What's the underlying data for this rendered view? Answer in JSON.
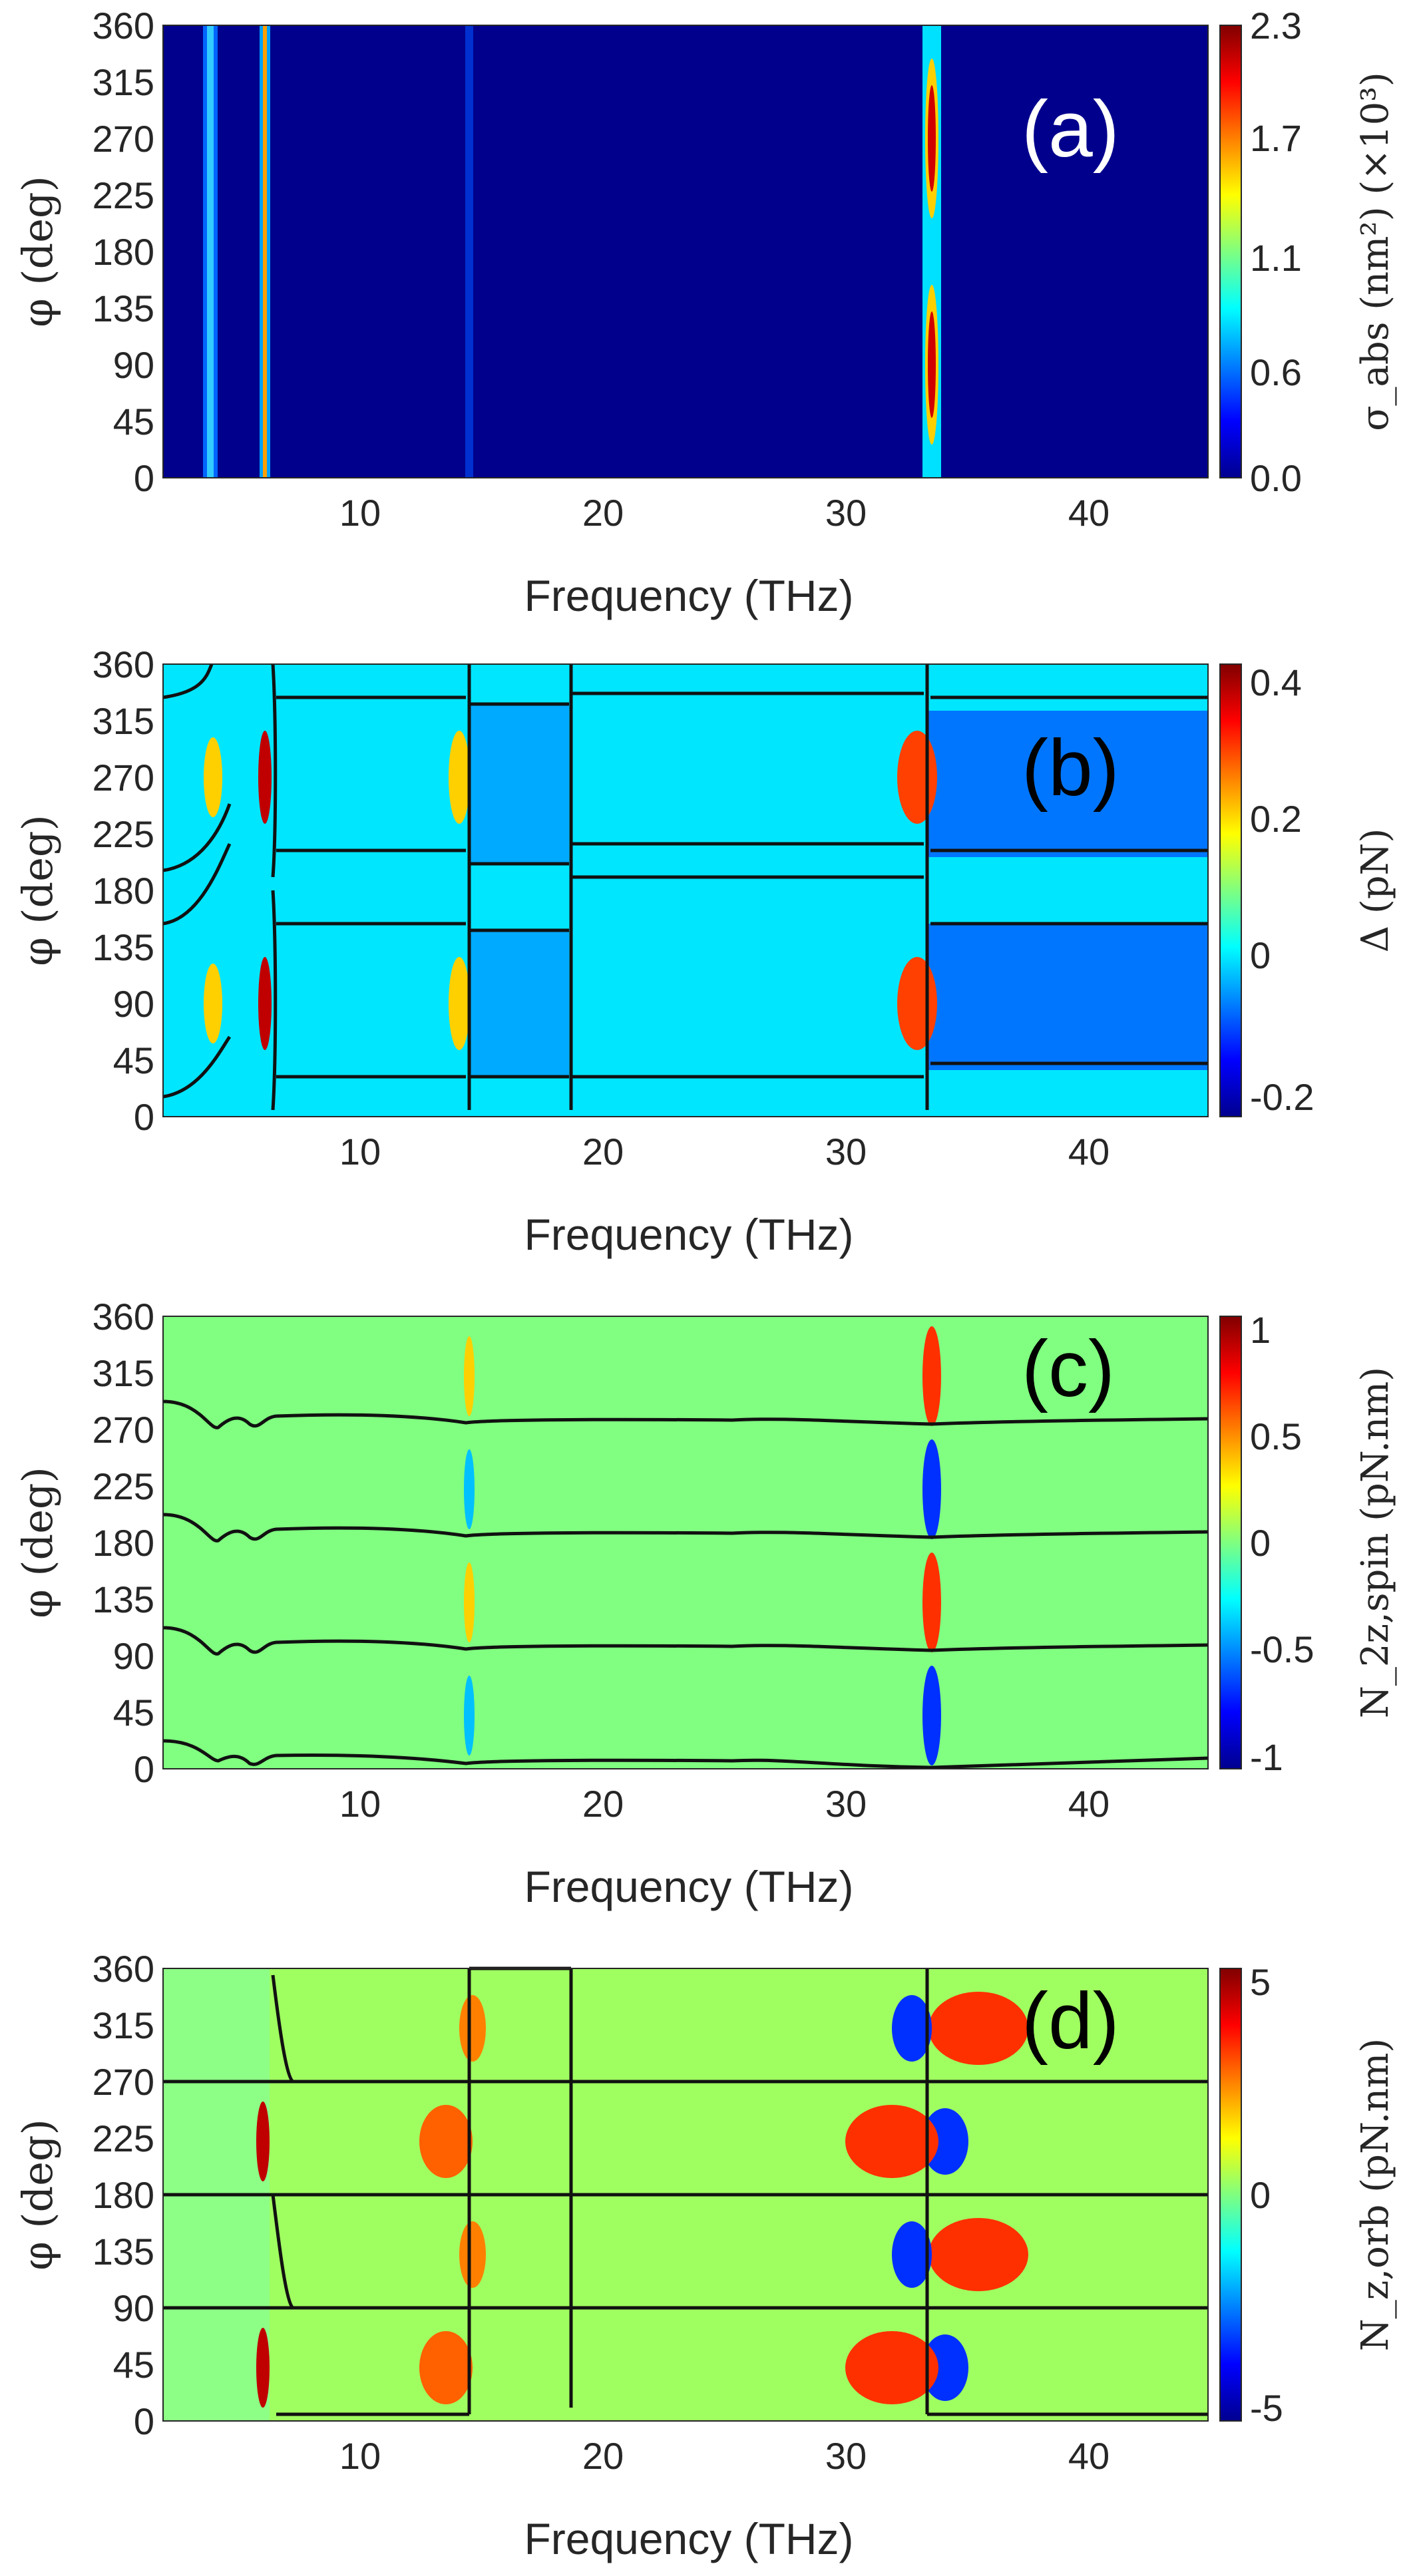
{
  "chart_data": [
    {
      "type": "heatmap",
      "panel": "(a)",
      "xlabel": "Frequency (THz)",
      "ylabel": "φ (deg)",
      "xlim": [
        2,
        45
      ],
      "ylim": [
        0,
        360
      ],
      "xticks": [
        "10",
        "20",
        "30",
        "40"
      ],
      "yticks": [
        "0",
        "45",
        "90",
        "135",
        "180",
        "225",
        "270",
        "315",
        "360"
      ],
      "colorbar_label": "σ_abs (nm²) (×10³)",
      "colorbar_ticks": [
        "0.0",
        "0.6",
        "1.1",
        "1.7",
        "2.3"
      ],
      "clim": [
        0,
        2.3
      ],
      "resonances_thz": [
        3.9,
        5.9,
        14.3,
        33.4
      ],
      "max_phi_deg": [
        90,
        270
      ],
      "label_color": "#ffffff"
    },
    {
      "type": "heatmap",
      "panel": "(b)",
      "xlabel": "Frequency (THz)",
      "ylabel": "φ (deg)",
      "xlim": [
        2,
        45
      ],
      "ylim": [
        0,
        360
      ],
      "xticks": [
        "10",
        "20",
        "30",
        "40"
      ],
      "yticks": [
        "0",
        "45",
        "90",
        "135",
        "180",
        "225",
        "270",
        "315",
        "360"
      ],
      "colorbar_label": "Δ (pN)",
      "colorbar_ticks": [
        "-0.2",
        "0",
        "0.2",
        "0.4"
      ],
      "clim": [
        -0.25,
        0.43
      ],
      "zero_contours": "black",
      "label_color": "#000000"
    },
    {
      "type": "heatmap",
      "panel": "(c)",
      "xlabel": "Frequency (THz)",
      "ylabel": "φ (deg)",
      "xlim": [
        2,
        45
      ],
      "ylim": [
        0,
        360
      ],
      "xticks": [
        "10",
        "20",
        "30",
        "40"
      ],
      "yticks": [
        "0",
        "45",
        "90",
        "135",
        "180",
        "225",
        "270",
        "315",
        "360"
      ],
      "colorbar_label": "N_2z,spin (pN.nm)",
      "colorbar_ticks": [
        "-1",
        "-0.5",
        "0",
        "0.5",
        "1"
      ],
      "clim": [
        -1.05,
        1.05
      ],
      "zero_contours": "black",
      "label_color": "#000000"
    },
    {
      "type": "heatmap",
      "panel": "(d)",
      "xlabel": "Frequency (THz)",
      "ylabel": "φ (deg)",
      "xlim": [
        2,
        45
      ],
      "ylim": [
        0,
        360
      ],
      "xticks": [
        "10",
        "20",
        "30",
        "40"
      ],
      "yticks": [
        "0",
        "45",
        "90",
        "135",
        "180",
        "225",
        "270",
        "315",
        "360"
      ],
      "colorbar_label": "N_z,orb (pN.nm)",
      "colorbar_ticks": [
        "-5",
        "0",
        "5"
      ],
      "clim": [
        -5.2,
        5.2
      ],
      "zero_contours": "black",
      "label_color": "#000000"
    }
  ]
}
